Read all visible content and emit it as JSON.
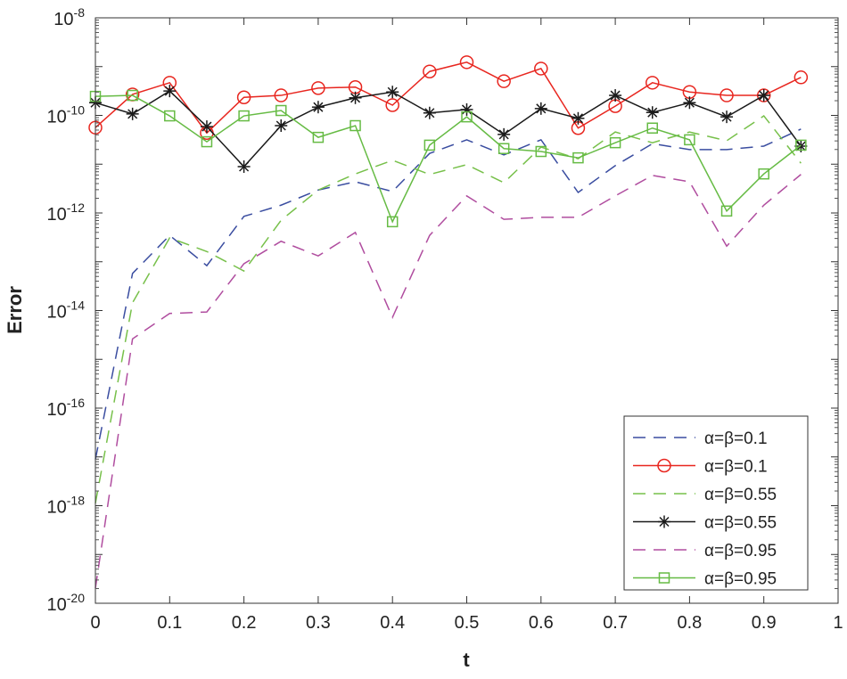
{
  "chart_data": {
    "type": "line",
    "title": "",
    "xlabel": "t",
    "ylabel": "Error",
    "xlim": [
      0,
      1
    ],
    "ylim_log10": [
      -20,
      -8
    ],
    "yscale": "log",
    "grid": false,
    "legend_position": "bottom-right",
    "x_ticks": [
      "0",
      "0.1",
      "0.2",
      "0.3",
      "0.4",
      "0.5",
      "0.6",
      "0.7",
      "0.8",
      "0.9",
      "1"
    ],
    "y_ticks": [
      {
        "base": "10",
        "exp": "-8"
      },
      {
        "base": "10",
        "exp": "-10"
      },
      {
        "base": "10",
        "exp": "-12"
      },
      {
        "base": "10",
        "exp": "-14"
      },
      {
        "base": "10",
        "exp": "-16"
      },
      {
        "base": "10",
        "exp": "-18"
      },
      {
        "base": "10",
        "exp": "-20"
      }
    ],
    "x": [
      0,
      0.05,
      0.1,
      0.15,
      0.2,
      0.25,
      0.3,
      0.35,
      0.4,
      0.45,
      0.5,
      0.55,
      0.6,
      0.65,
      0.7,
      0.75,
      0.8,
      0.85,
      0.9,
      0.95
    ],
    "series": [
      {
        "name": "α=β=0.1",
        "color": "#3a4da0",
        "style": "dashed",
        "marker": "none",
        "log10_values": [
          -17.05,
          -13.24,
          -12.46,
          -13.08,
          -12.07,
          -11.84,
          -11.53,
          -11.36,
          -11.56,
          -10.78,
          -10.5,
          -10.81,
          -10.5,
          -11.58,
          -11.03,
          -10.58,
          -10.7,
          -10.7,
          -10.63,
          -10.28
        ]
      },
      {
        "name": "α=β=0.1",
        "color": "#e8261f",
        "style": "solid",
        "marker": "circle",
        "log10_values": [
          -10.25,
          -9.57,
          -9.33,
          -10.36,
          -9.63,
          -9.59,
          -9.44,
          -9.42,
          -9.79,
          -9.1,
          -8.91,
          -9.3,
          -9.04,
          -10.26,
          -9.81,
          -9.33,
          -9.52,
          -9.59,
          -9.59,
          -9.22
        ]
      },
      {
        "name": "α=β=0.55",
        "color": "#77c04a",
        "style": "dashed",
        "marker": "none",
        "log10_values": [
          -17.95,
          -13.84,
          -12.51,
          -12.79,
          -13.19,
          -12.15,
          -11.53,
          -11.2,
          -10.92,
          -11.21,
          -11.01,
          -11.38,
          -10.65,
          -10.89,
          -10.34,
          -10.56,
          -10.34,
          -10.52,
          -10.01,
          -10.98
        ]
      },
      {
        "name": "α=β=0.55",
        "color": "#1a1a1a",
        "style": "solid",
        "marker": "star",
        "log10_values": [
          -9.74,
          -9.97,
          -9.5,
          -10.23,
          -11.05,
          -10.21,
          -9.83,
          -9.64,
          -9.52,
          -9.95,
          -9.88,
          -10.39,
          -9.86,
          -10.06,
          -9.59,
          -9.94,
          -9.74,
          -10.03,
          -9.59,
          -10.63
        ]
      },
      {
        "name": "α=β=0.95",
        "color": "#b04d9f",
        "style": "dashed",
        "marker": "none",
        "log10_values": [
          -19.69,
          -14.58,
          -14.06,
          -14.03,
          -13.04,
          -12.58,
          -12.88,
          -12.4,
          -14.14,
          -12.46,
          -11.65,
          -12.13,
          -12.09,
          -12.09,
          -11.65,
          -11.23,
          -11.36,
          -12.68,
          -11.84,
          -11.21
        ]
      },
      {
        "name": "α=β=0.95",
        "color": "#66bb44",
        "style": "solid",
        "marker": "square",
        "log10_values": [
          -9.61,
          -9.59,
          -10.01,
          -10.54,
          -10.01,
          -9.9,
          -10.45,
          -10.21,
          -12.18,
          -10.61,
          -10.03,
          -10.68,
          -10.74,
          -10.87,
          -10.56,
          -10.26,
          -10.5,
          -11.96,
          -11.2,
          -10.61
        ]
      }
    ]
  }
}
